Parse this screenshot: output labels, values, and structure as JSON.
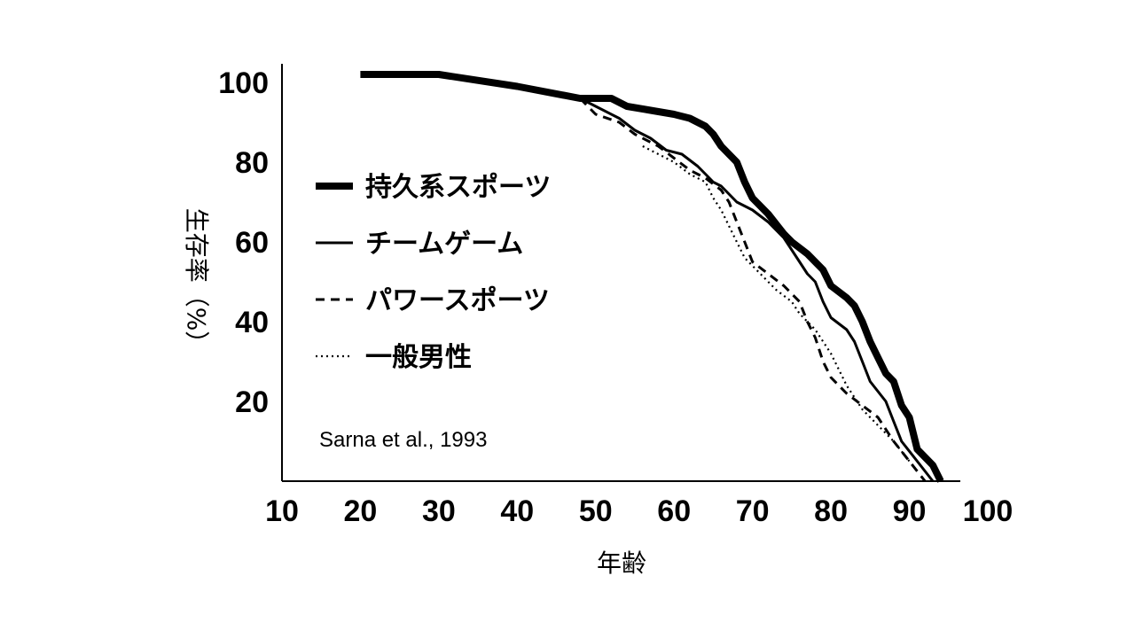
{
  "chart_data": {
    "type": "line",
    "title": "",
    "xlabel": "年齢",
    "ylabel": "生存率（%）",
    "xlim": [
      10,
      100
    ],
    "ylim": [
      0,
      100
    ],
    "x_ticks": [
      "10",
      "20",
      "30",
      "40",
      "50",
      "60",
      "70",
      "80",
      "90",
      "100"
    ],
    "y_ticks": [
      "20",
      "40",
      "60",
      "80",
      "100"
    ],
    "grid": false,
    "legend_position": "left",
    "annotation": "Sarna et al., 1993",
    "series": [
      {
        "name": "持久系スポーツ",
        "style": "thick",
        "points": [
          [
            20,
            102
          ],
          [
            30,
            102
          ],
          [
            40,
            99
          ],
          [
            48,
            96
          ],
          [
            52,
            96
          ],
          [
            54,
            94
          ],
          [
            57,
            93
          ],
          [
            60,
            92
          ],
          [
            62,
            91
          ],
          [
            64,
            89
          ],
          [
            65,
            87
          ],
          [
            66,
            84
          ],
          [
            68,
            80
          ],
          [
            69,
            75
          ],
          [
            70,
            71
          ],
          [
            72,
            67
          ],
          [
            74,
            62
          ],
          [
            75,
            60
          ],
          [
            77,
            57
          ],
          [
            79,
            53
          ],
          [
            80,
            49
          ],
          [
            82,
            46
          ],
          [
            83,
            44
          ],
          [
            84,
            40
          ],
          [
            85,
            35
          ],
          [
            86,
            31
          ],
          [
            87,
            27
          ],
          [
            88,
            25
          ],
          [
            89,
            19
          ],
          [
            90,
            16
          ],
          [
            91,
            8
          ],
          [
            93,
            4
          ],
          [
            94,
            0
          ]
        ]
      },
      {
        "name": "チームゲーム",
        "style": "solid",
        "points": [
          [
            48,
            96
          ],
          [
            50,
            94
          ],
          [
            53,
            91
          ],
          [
            55,
            88
          ],
          [
            57,
            86
          ],
          [
            59,
            83
          ],
          [
            61,
            82
          ],
          [
            63,
            79
          ],
          [
            64,
            77
          ],
          [
            65,
            75
          ],
          [
            66,
            74
          ],
          [
            67,
            72
          ],
          [
            68,
            70
          ],
          [
            70,
            68
          ],
          [
            72,
            65
          ],
          [
            74,
            61
          ],
          [
            76,
            55
          ],
          [
            77,
            52
          ],
          [
            78,
            50
          ],
          [
            79,
            45
          ],
          [
            80,
            41
          ],
          [
            82,
            38
          ],
          [
            83,
            35
          ],
          [
            84,
            30
          ],
          [
            85,
            25
          ],
          [
            87,
            20
          ],
          [
            88,
            15
          ],
          [
            89,
            10
          ],
          [
            91,
            5
          ],
          [
            93,
            0
          ]
        ]
      },
      {
        "name": "パワースポーツ",
        "style": "dashed",
        "points": [
          [
            48,
            96
          ],
          [
            50,
            92
          ],
          [
            53,
            90
          ],
          [
            55,
            87
          ],
          [
            58,
            84
          ],
          [
            60,
            81
          ],
          [
            62,
            78
          ],
          [
            64,
            76
          ],
          [
            66,
            73
          ],
          [
            67,
            70
          ],
          [
            68,
            65
          ],
          [
            69,
            60
          ],
          [
            70,
            55
          ],
          [
            72,
            52
          ],
          [
            74,
            49
          ],
          [
            76,
            45
          ],
          [
            77,
            40
          ],
          [
            78,
            36
          ],
          [
            79,
            30
          ],
          [
            80,
            26
          ],
          [
            82,
            22
          ],
          [
            84,
            19
          ],
          [
            86,
            16
          ],
          [
            88,
            10
          ],
          [
            90,
            5
          ],
          [
            92,
            0
          ]
        ]
      },
      {
        "name": "一般男性",
        "style": "dotted",
        "points": [
          [
            56,
            84
          ],
          [
            58,
            82
          ],
          [
            60,
            80
          ],
          [
            62,
            77
          ],
          [
            64,
            75
          ],
          [
            65,
            71
          ],
          [
            66,
            68
          ],
          [
            67,
            64
          ],
          [
            68,
            60
          ],
          [
            69,
            56
          ],
          [
            71,
            52
          ],
          [
            73,
            48
          ],
          [
            75,
            45
          ],
          [
            76,
            42
          ],
          [
            78,
            38
          ],
          [
            80,
            32
          ],
          [
            82,
            24
          ],
          [
            84,
            18
          ],
          [
            86,
            14
          ],
          [
            88,
            10
          ],
          [
            90,
            5
          ]
        ]
      }
    ]
  }
}
